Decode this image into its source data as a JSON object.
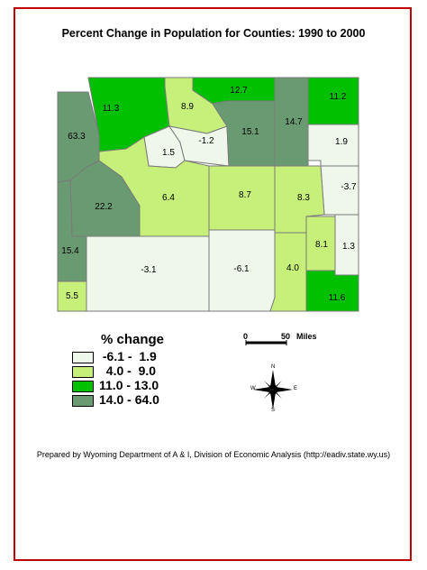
{
  "title": "Percent Change in Population for Counties:  1990 to 2000",
  "legend": {
    "title": "% change",
    "items": [
      {
        "label": " -6.1 -  1.9",
        "color": "#eef7ea"
      },
      {
        "label": "  4.0 -  9.0",
        "color": "#c6f07a"
      },
      {
        "label": "11.0 - 13.0",
        "color": "#00c000"
      },
      {
        "label": "14.0 - 64.0",
        "color": "#6a9a72"
      }
    ]
  },
  "scale": {
    "start": "0",
    "end": "50",
    "unit": "Miles"
  },
  "compass": {
    "n": "N",
    "s": "S",
    "e": "E",
    "w": "W"
  },
  "footer": "Prepared by Wyoming Department of A & I, Division of Economic Analysis (http://eadiv.state.wy.us)",
  "counties": [
    {
      "value": "63.3",
      "class": 4
    },
    {
      "value": "11.3",
      "class": 3
    },
    {
      "value": "8.9",
      "class": 2
    },
    {
      "value": "12.7",
      "class": 3
    },
    {
      "value": "14.7",
      "class": 4
    },
    {
      "value": "11.2",
      "class": 3
    },
    {
      "value": "1.5",
      "class": 1
    },
    {
      "value": "-1.2",
      "class": 1
    },
    {
      "value": "15.1",
      "class": 4
    },
    {
      "value": "1.9",
      "class": 1
    },
    {
      "value": "-3.7",
      "class": 1
    },
    {
      "value": "22.2",
      "class": 4
    },
    {
      "value": "6.4",
      "class": 2
    },
    {
      "value": "8.7",
      "class": 2
    },
    {
      "value": "8.3",
      "class": 2
    },
    {
      "value": "15.4",
      "class": 4
    },
    {
      "value": "-3.1",
      "class": 1
    },
    {
      "value": "-6.1",
      "class": 1
    },
    {
      "value": "8.1",
      "class": 2
    },
    {
      "value": "1.3",
      "class": 1
    },
    {
      "value": "4.0",
      "class": 2
    },
    {
      "value": "5.5",
      "class": 2
    },
    {
      "value": "11.6",
      "class": 3
    }
  ]
}
